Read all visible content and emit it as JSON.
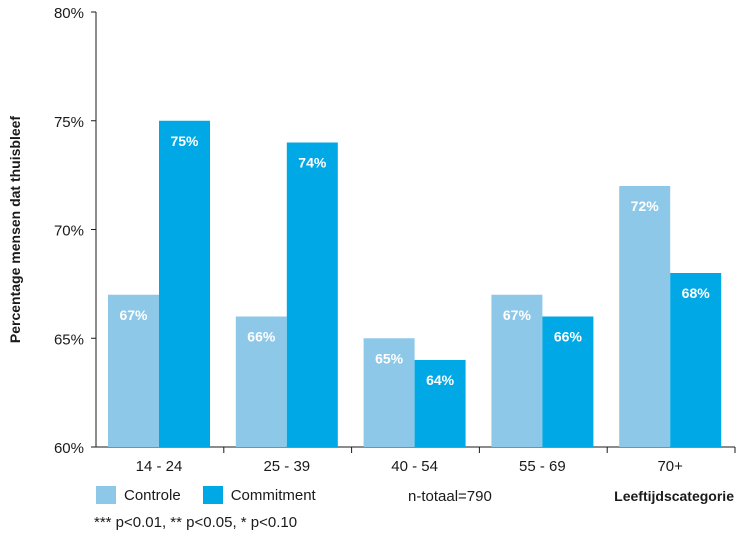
{
  "chart_data": {
    "type": "bar",
    "categories": [
      "14 - 24",
      "25 - 39",
      "40 - 54",
      "55 - 69",
      "70+"
    ],
    "series": [
      {
        "name": "Controle",
        "color": "#8DC8E8",
        "values": [
          67,
          66,
          65,
          67,
          72
        ],
        "labels": [
          "67%",
          "66%",
          "65%",
          "67%",
          "72%"
        ]
      },
      {
        "name": "Commitment",
        "color": "#00A9E6",
        "values": [
          75,
          74,
          64,
          66,
          68
        ],
        "labels": [
          "75%",
          "74%",
          "64%",
          "66%",
          "68%"
        ]
      }
    ],
    "ylabel": "Percentage mensen dat thuisbleef",
    "xlabel": "Leeftijdscategorie",
    "ylim": [
      60,
      80
    ],
    "yticks": [
      60,
      65,
      70,
      75,
      80
    ],
    "ytick_labels": [
      "60%",
      "65%",
      "70%",
      "75%",
      "80%"
    ],
    "grid": false,
    "legend_position": "bottom-left"
  },
  "notes": {
    "n_total": "n-totaal=790",
    "significance": "*** p<0.01, ** p<0.05, * p<0.10"
  }
}
